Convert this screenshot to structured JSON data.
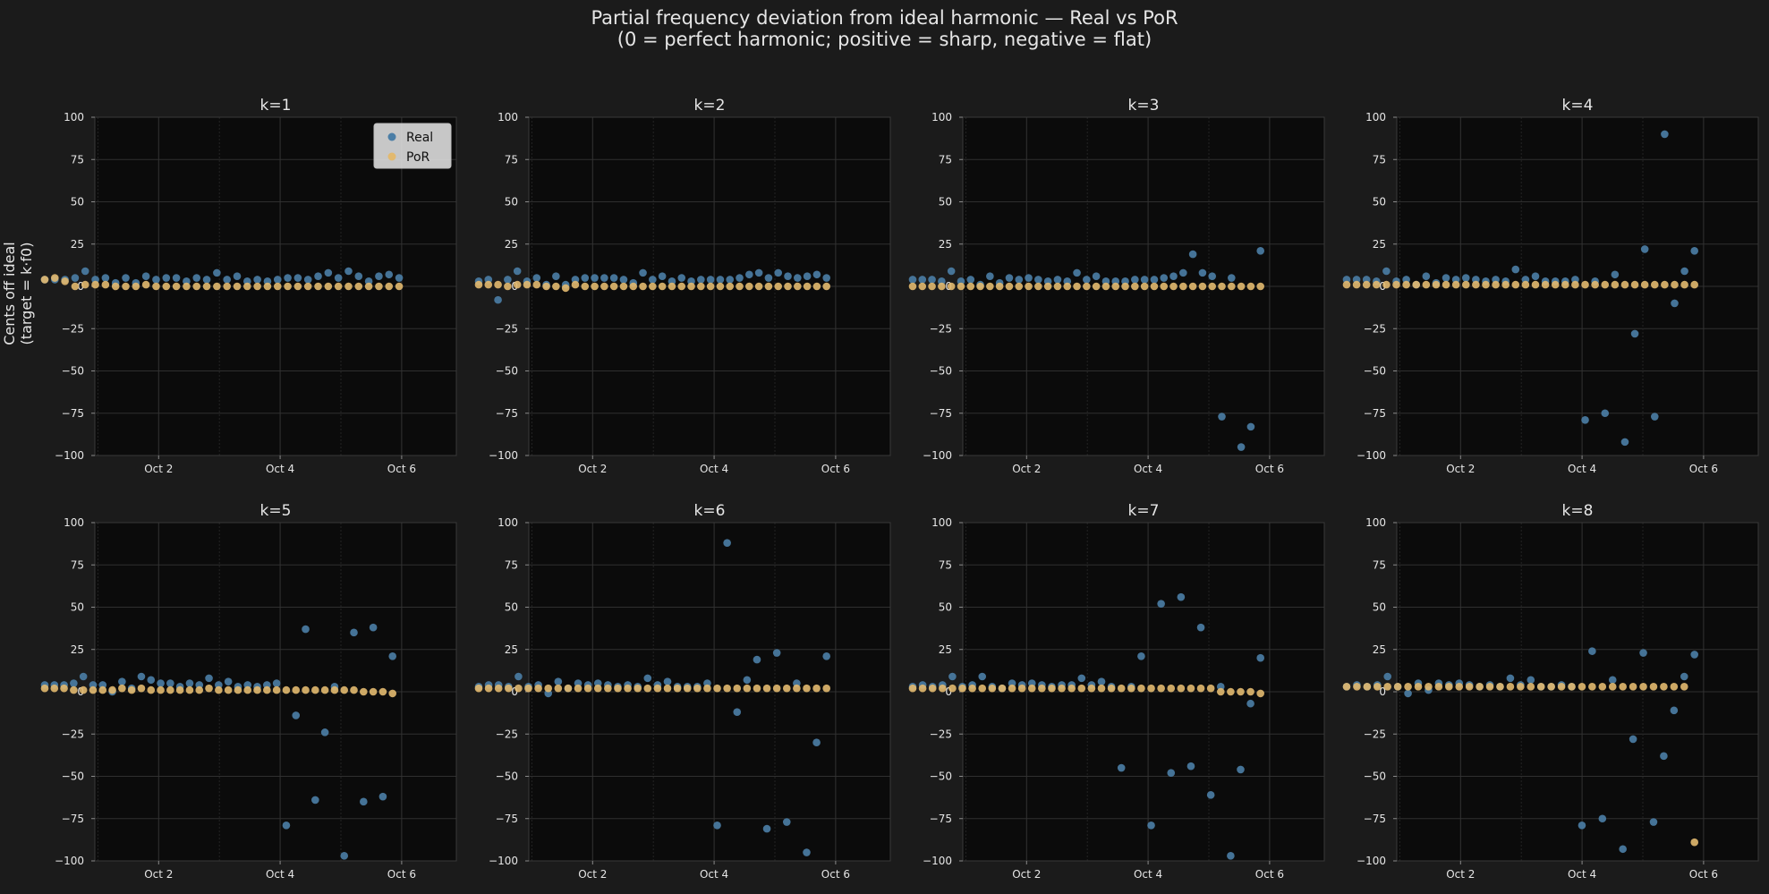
{
  "suptitle": {
    "line1": "Partial frequency deviation from ideal harmonic — Real vs PoR",
    "line2": "(0 = perfect harmonic; positive = sharp, negative = flat)"
  },
  "ylabel": {
    "line1": "Cents off ideal",
    "line2": "(target = k·f0)"
  },
  "colors": {
    "figure_bg": "#1b1b1b",
    "axes_bg": "#0b0b0b",
    "real": "#4b7ea6",
    "por": "#e2b96f",
    "text": "#e6e6e6"
  },
  "legend": {
    "real_label": "Real",
    "por_label": "PoR",
    "placement": "upper right of k=1"
  },
  "chart_data": [
    {
      "type": "scatter",
      "title": "k=1",
      "x_axis": "date",
      "ylim": [
        -100,
        100
      ],
      "x": [
        "Oct 1 06:00",
        "Oct 1 12:00",
        "Oct 1 18:00",
        "Oct 2 00:00",
        "Oct 2 06:00",
        "Oct 2 12:00",
        "Oct 2 18:00",
        "Oct 3 00:00",
        "Oct 3 06:00",
        "Oct 3 12:00",
        "Oct 3 18:00",
        "Oct 4 00:00",
        "Oct 4 06:00",
        "Oct 4 12:00",
        "Oct 4 18:00",
        "Oct 5 00:00",
        "Oct 5 06:00",
        "Oct 5 12:00",
        "Oct 5 18:00",
        "Oct 6 00:00",
        "Oct 6 06:00",
        "Oct 6 12:00",
        "Oct 6 18:00"
      ],
      "xticks": [
        "Oct 2",
        "Oct 4",
        "Oct 6"
      ],
      "series": [
        {
          "name": "Real",
          "x": [
            "Oct 1 03:00",
            "Oct 1 07:00",
            "Oct 1 11:00",
            "Oct 1 15:00",
            "Oct 1 19:00",
            "Oct 1 23:00",
            "Oct 2 03:00",
            "Oct 2 07:00",
            "Oct 2 11:00",
            "Oct 2 15:00",
            "Oct 2 19:00",
            "Oct 2 23:00",
            "Oct 3 03:00",
            "Oct 3 07:00",
            "Oct 3 11:00",
            "Oct 3 15:00",
            "Oct 3 19:00",
            "Oct 3 23:00",
            "Oct 4 03:00",
            "Oct 4 07:00",
            "Oct 4 11:00",
            "Oct 4 15:00",
            "Oct 4 19:00",
            "Oct 4 23:00",
            "Oct 5 03:00",
            "Oct 5 07:00",
            "Oct 5 11:00",
            "Oct 5 15:00",
            "Oct 5 19:00",
            "Oct 5 23:00",
            "Oct 6 03:00",
            "Oct 6 07:00",
            "Oct 6 11:00",
            "Oct 6 15:00",
            "Oct 6 19:00",
            "Oct 6 23:00"
          ],
          "y": [
            4,
            4,
            4,
            5,
            9,
            4,
            5,
            2,
            5,
            2,
            6,
            4,
            5,
            5,
            3,
            5,
            4,
            8,
            4,
            6,
            3,
            4,
            3,
            4,
            5,
            5,
            4,
            6,
            8,
            5,
            9,
            6,
            3,
            6,
            7,
            5
          ]
        },
        {
          "name": "PoR",
          "x": [
            "Oct 1 03:00",
            "Oct 1 07:00",
            "Oct 1 11:00",
            "Oct 1 15:00",
            "Oct 1 19:00",
            "Oct 1 23:00",
            "Oct 2 03:00",
            "Oct 2 07:00",
            "Oct 2 11:00",
            "Oct 2 15:00",
            "Oct 2 19:00",
            "Oct 2 23:00",
            "Oct 3 03:00",
            "Oct 3 07:00",
            "Oct 3 11:00",
            "Oct 3 15:00",
            "Oct 3 19:00",
            "Oct 3 23:00",
            "Oct 4 03:00",
            "Oct 4 07:00",
            "Oct 4 11:00",
            "Oct 4 15:00",
            "Oct 4 19:00",
            "Oct 4 23:00",
            "Oct 5 03:00",
            "Oct 5 07:00",
            "Oct 5 11:00",
            "Oct 5 15:00",
            "Oct 5 19:00",
            "Oct 5 23:00",
            "Oct 6 03:00",
            "Oct 6 07:00",
            "Oct 6 11:00",
            "Oct 6 15:00",
            "Oct 6 19:00",
            "Oct 6 23:00"
          ],
          "y": [
            4,
            5,
            3,
            0,
            1,
            1,
            1,
            0,
            0,
            0,
            1,
            0,
            0,
            0,
            0,
            0,
            0,
            0,
            0,
            0,
            0,
            0,
            0,
            0,
            0,
            0,
            0,
            0,
            0,
            0,
            0,
            0,
            0,
            0,
            0,
            0
          ]
        }
      ]
    },
    {
      "type": "scatter",
      "title": "k=2",
      "x_axis": "date",
      "ylim": [
        -100,
        100
      ],
      "xticks": [
        "Oct 2",
        "Oct 4",
        "Oct 6"
      ],
      "series": [
        {
          "name": "Real",
          "y": [
            3,
            4,
            -8,
            4,
            9,
            3,
            5,
            1,
            6,
            1,
            4,
            5,
            5,
            5,
            5,
            4,
            2,
            8,
            4,
            6,
            3,
            5,
            3,
            4,
            4,
            4,
            4,
            5,
            7,
            8,
            5,
            8,
            6,
            5,
            6,
            7,
            5
          ]
        },
        {
          "name": "PoR",
          "y": [
            1,
            1,
            1,
            0,
            1,
            1,
            1,
            0,
            0,
            -1,
            1,
            0,
            0,
            0,
            0,
            0,
            0,
            0,
            0,
            0,
            0,
            0,
            0,
            0,
            0,
            0,
            0,
            0,
            0,
            0,
            0,
            0,
            0,
            0,
            0,
            0,
            0
          ]
        }
      ]
    },
    {
      "type": "scatter",
      "title": "k=3",
      "x_axis": "date",
      "ylim": [
        -100,
        100
      ],
      "xticks": [
        "Oct 2",
        "Oct 4",
        "Oct 6"
      ],
      "series": [
        {
          "name": "Real",
          "y": [
            4,
            4,
            4,
            3,
            9,
            3,
            4,
            1,
            6,
            2,
            5,
            4,
            5,
            4,
            3,
            4,
            3,
            8,
            4,
            6,
            3,
            3,
            3,
            4,
            4,
            4,
            5,
            6,
            8,
            19,
            8,
            6,
            -77,
            5,
            -95,
            -83,
            21
          ]
        },
        {
          "name": "PoR",
          "y": [
            0,
            0,
            0,
            0,
            0,
            0,
            0,
            0,
            0,
            0,
            0,
            0,
            0,
            0,
            0,
            0,
            0,
            0,
            0,
            0,
            0,
            0,
            0,
            0,
            0,
            0,
            0,
            0,
            0,
            0,
            0,
            0,
            0,
            0,
            0,
            0,
            0
          ]
        }
      ]
    },
    {
      "type": "scatter",
      "title": "k=4",
      "x_axis": "date",
      "ylim": [
        -100,
        100
      ],
      "xticks": [
        "Oct 2",
        "Oct 4",
        "Oct 6"
      ],
      "series": [
        {
          "name": "Real",
          "y": [
            4,
            4,
            4,
            3,
            9,
            3,
            4,
            1,
            6,
            2,
            5,
            4,
            5,
            4,
            3,
            4,
            3,
            10,
            4,
            6,
            3,
            3,
            3,
            4,
            -79,
            3,
            -75,
            7,
            -92,
            -28,
            22,
            -77,
            90,
            -10,
            9,
            21
          ]
        },
        {
          "name": "PoR",
          "y": [
            1,
            1,
            1,
            1,
            1,
            1,
            1,
            1,
            1,
            1,
            1,
            1,
            1,
            1,
            1,
            1,
            1,
            1,
            1,
            1,
            1,
            1,
            1,
            1,
            1,
            1,
            1,
            1,
            1,
            1,
            1,
            1,
            1,
            1,
            1,
            1
          ]
        }
      ]
    },
    {
      "type": "scatter",
      "title": "k=5",
      "x_axis": "date",
      "ylim": [
        -100,
        100
      ],
      "xticks": [
        "Oct 2",
        "Oct 4",
        "Oct 6"
      ],
      "series": [
        {
          "name": "Real",
          "y": [
            4,
            4,
            4,
            5,
            9,
            4,
            4,
            0,
            6,
            2,
            9,
            7,
            5,
            5,
            3,
            5,
            4,
            8,
            4,
            6,
            3,
            4,
            3,
            4,
            5,
            -79,
            -14,
            37,
            -64,
            -24,
            3,
            -97,
            35,
            -65,
            38,
            -62,
            21
          ]
        },
        {
          "name": "PoR",
          "y": [
            2,
            2,
            2,
            1,
            1,
            1,
            1,
            1,
            2,
            1,
            2,
            1,
            1,
            1,
            1,
            1,
            1,
            2,
            1,
            1,
            1,
            1,
            1,
            1,
            1,
            1,
            1,
            1,
            1,
            1,
            1,
            1,
            1,
            0,
            0,
            0,
            -1
          ]
        }
      ]
    },
    {
      "type": "scatter",
      "title": "k=6",
      "x_axis": "date",
      "ylim": [
        -100,
        100
      ],
      "xticks": [
        "Oct 2",
        "Oct 4",
        "Oct 6"
      ],
      "series": [
        {
          "name": "Real",
          "y": [
            3,
            4,
            4,
            3,
            9,
            3,
            4,
            -1,
            6,
            2,
            5,
            4,
            5,
            4,
            3,
            4,
            3,
            8,
            4,
            6,
            3,
            3,
            3,
            5,
            -79,
            88,
            -12,
            7,
            19,
            -81,
            23,
            -77,
            5,
            -95,
            -30,
            21
          ]
        },
        {
          "name": "PoR",
          "y": [
            2,
            2,
            2,
            2,
            2,
            2,
            2,
            2,
            2,
            2,
            2,
            2,
            2,
            2,
            2,
            2,
            2,
            2,
            2,
            2,
            2,
            2,
            2,
            2,
            2,
            2,
            2,
            2,
            2,
            2,
            2,
            2,
            2,
            2,
            2,
            2
          ]
        }
      ]
    },
    {
      "type": "scatter",
      "title": "k=7",
      "x_axis": "date",
      "ylim": [
        -100,
        100
      ],
      "xticks": [
        "Oct 2",
        "Oct 4",
        "Oct 6"
      ],
      "series": [
        {
          "name": "Real",
          "y": [
            3,
            4,
            3,
            4,
            9,
            3,
            4,
            9,
            3,
            2,
            5,
            4,
            5,
            4,
            3,
            4,
            4,
            8,
            4,
            6,
            3,
            -45,
            3,
            21,
            -79,
            52,
            -48,
            56,
            -44,
            38,
            -61,
            3,
            -97,
            -46,
            -7,
            20
          ]
        },
        {
          "name": "PoR",
          "y": [
            2,
            2,
            2,
            2,
            2,
            2,
            2,
            2,
            2,
            2,
            2,
            2,
            2,
            2,
            2,
            2,
            2,
            2,
            2,
            2,
            2,
            2,
            2,
            2,
            2,
            2,
            2,
            2,
            2,
            2,
            2,
            0,
            0,
            0,
            0,
            -1
          ]
        }
      ]
    },
    {
      "type": "scatter",
      "title": "k=8",
      "x_axis": "date",
      "ylim": [
        -100,
        100
      ],
      "xticks": [
        "Oct 2",
        "Oct 4",
        "Oct 6"
      ],
      "series": [
        {
          "name": "Real",
          "y": [
            3,
            4,
            3,
            4,
            9,
            3,
            -1,
            5,
            1,
            5,
            4,
            5,
            4,
            3,
            4,
            3,
            8,
            4,
            7,
            3,
            3,
            4,
            3,
            -79,
            24,
            -75,
            7,
            -93,
            -28,
            23,
            -77,
            -38,
            -11,
            9,
            22
          ]
        },
        {
          "name": "PoR",
          "y": [
            3,
            3,
            3,
            3,
            3,
            3,
            3,
            3,
            3,
            3,
            3,
            3,
            3,
            3,
            3,
            3,
            3,
            3,
            3,
            3,
            3,
            3,
            3,
            3,
            3,
            3,
            3,
            3,
            3,
            3,
            3,
            3,
            3,
            3,
            -89
          ]
        }
      ]
    }
  ],
  "yticks": [
    "100",
    "75",
    "50",
    "25",
    "0",
    "−25",
    "−50",
    "−75",
    "−100"
  ]
}
